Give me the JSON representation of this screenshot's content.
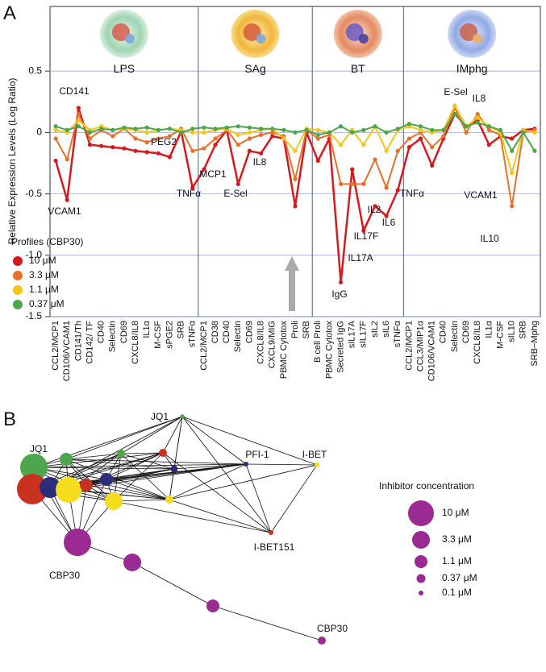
{
  "panel_a": "A",
  "panel_b": "B",
  "chart_data": {
    "type": "line",
    "y_label": "Relative Expression Levels (Log Ratio)",
    "groups": [
      "LPS",
      "SAg",
      "BT",
      "IMphg"
    ],
    "categories": [
      "CCL2/MCP1",
      "CD106/VCAM1",
      "CD141/Th",
      "CD142/ TF",
      "CD40",
      "Selectin",
      "CD69",
      "CXCL8/IL8",
      "IL1α",
      "M-CSF",
      "sPGE2",
      "SRB",
      "sTNFα",
      "CCL2/MCP1",
      "CD38",
      "CD40",
      "Selectin",
      "CD69",
      "CXCL8/IL8",
      "CXCL9/MIG",
      "PBMC Cytotox",
      "Proli",
      "SRB",
      "B cell Proli",
      "PBMC Cytotox",
      "Secreted IgG",
      "sIL17A",
      "sIL17F",
      "sIL2",
      "sIL6",
      "sTNFα",
      "CCL2/MCP1",
      "CCL3/MIP1α",
      "CD106/VCAM1",
      "CD40",
      "Selectin",
      "CD69",
      "CXCL8/IL8",
      "IL1α",
      "M-CSF",
      "sIL10",
      "SRB",
      "SRB−Mphg"
    ],
    "ylim": [
      -1.5,
      1.0
    ],
    "yticks": [
      -1.5,
      {
        "value": -1,
        "label": "-1.0"
      },
      -0.5,
      0,
      0.5
    ],
    "legend_title": "Profiles (CBP30)",
    "series": [
      {
        "name": "10 μM",
        "color": "#d7191c",
        "values": [
          -0.23,
          -0.55,
          0.2,
          -0.1,
          -0.11,
          -0.12,
          -0.13,
          -0.15,
          -0.16,
          -0.17,
          -0.2,
          0.01,
          -0.45,
          -0.3,
          -0.1,
          0.02,
          -0.42,
          -0.15,
          -0.17,
          -0.03,
          -0.05,
          -0.6,
          0.0,
          -0.23,
          -0.05,
          -1.22,
          -0.3,
          -0.8,
          -0.6,
          -0.68,
          -0.47,
          -0.12,
          -0.05,
          -0.27,
          -0.05,
          0.15,
          0.05,
          0.1,
          -0.1,
          -0.03,
          -0.05,
          0.02,
          0.03
        ]
      },
      {
        "name": "3.3 μM",
        "color": "#e8702a",
        "values": [
          -0.05,
          -0.22,
          0.15,
          -0.05,
          0.02,
          -0.03,
          0.03,
          -0.05,
          -0.08,
          -0.05,
          -0.03,
          0.03,
          -0.15,
          -0.13,
          -0.05,
          0.02,
          -0.1,
          -0.05,
          -0.02,
          0.0,
          -0.03,
          -0.38,
          0.02,
          -0.05,
          -0.02,
          -0.42,
          -0.42,
          -0.42,
          -0.22,
          -0.45,
          -0.15,
          -0.05,
          0.0,
          -0.12,
          -0.03,
          0.2,
          0.0,
          0.15,
          0.02,
          -0.02,
          -0.6,
          0.0,
          0.02
        ]
      },
      {
        "name": "1.1 μM",
        "color": "#f5c518",
        "values": [
          0.02,
          0.0,
          0.1,
          0.02,
          0.05,
          0.02,
          0.03,
          0.02,
          0.0,
          0.02,
          0.03,
          0.02,
          0.0,
          0.0,
          0.02,
          0.03,
          -0.02,
          0.0,
          0.02,
          0.03,
          -0.05,
          -0.15,
          0.03,
          0.02,
          0.0,
          -0.1,
          0.02,
          -0.1,
          0.05,
          -0.15,
          0.02,
          0.05,
          0.02,
          0.0,
          0.02,
          0.22,
          0.05,
          0.12,
          0.05,
          0.0,
          -0.33,
          0.02,
          0.0
        ]
      },
      {
        "name": "0.37 μM",
        "color": "#4ca64c",
        "values": [
          0.05,
          0.02,
          0.05,
          0.0,
          0.03,
          0.02,
          0.04,
          0.03,
          0.04,
          0.02,
          0.03,
          0.0,
          0.03,
          0.04,
          0.03,
          0.04,
          0.05,
          0.04,
          0.03,
          0.03,
          0.02,
          0.0,
          0.02,
          -0.02,
          0.0,
          0.05,
          0.0,
          0.02,
          0.05,
          0.0,
          0.03,
          0.07,
          0.05,
          0.02,
          0.02,
          0.15,
          0.05,
          0.08,
          0.05,
          0.02,
          -0.15,
          0.0,
          -0.15
        ]
      }
    ],
    "annotations": [
      "CD141",
      "VCAM1",
      "PEG2",
      "TNFα",
      "MCP1",
      "E-Sel",
      "IL8",
      "IgG",
      "IL17A",
      "IL17F",
      "IL2",
      "IL6",
      "TNFα",
      "VCAM1",
      "E-Sel",
      "IL8",
      "IL10"
    ]
  },
  "network": {
    "node_labels": [
      "JQ1",
      "JQ1",
      "PFI-1",
      "I-BET",
      "I-BET151",
      "CBP30",
      "CBP30"
    ],
    "legend_title": "Inhibitor concentration",
    "legend_items": [
      "10 μM",
      "3.3 μM",
      "1.1 μM",
      "0.37 μM",
      "0.1 μM"
    ]
  }
}
